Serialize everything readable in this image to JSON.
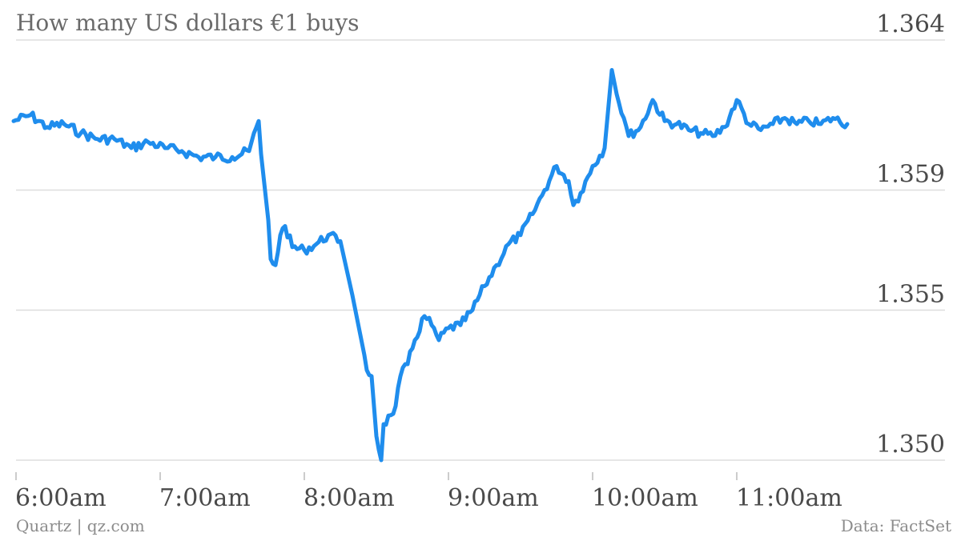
{
  "chart_data": {
    "type": "line",
    "title": "How many US dollars €1 buys",
    "xlabel": "",
    "ylabel": "",
    "ylim": [
      1.35,
      1.364
    ],
    "yticks": [
      "1.350",
      "1.355",
      "1.359",
      "1.364"
    ],
    "xticks": [
      "6:00am",
      "7:00am",
      "8:00am",
      "9:00am",
      "10:00am",
      "11:00am"
    ],
    "grid": true,
    "series": [
      {
        "color": "#1f8ded",
        "x": [
          "5:59am",
          "6:06am",
          "6:13am",
          "6:20am",
          "6:27am",
          "6:34am",
          "6:41am",
          "6:48am",
          "6:55am",
          "7:02am",
          "7:09am",
          "7:16am",
          "7:23am",
          "7:30am",
          "7:37am",
          "7:41am",
          "7:42am",
          "7:45am",
          "7:46am",
          "7:48am",
          "7:50am",
          "7:52am",
          "7:55am",
          "8:00am",
          "8:05am",
          "8:10am",
          "8:15am",
          "8:20am",
          "8:25am",
          "8:26am",
          "8:28am",
          "8:30am",
          "8:32am",
          "8:33am",
          "8:36am",
          "8:38am",
          "8:40am",
          "8:43am",
          "8:46am",
          "8:50am",
          "8:53am",
          "8:56am",
          "9:00am",
          "9:05am",
          "9:10am",
          "9:15am",
          "9:20am",
          "9:25am",
          "9:30am",
          "9:35am",
          "9:40am",
          "9:45am",
          "9:50am",
          "9:52am",
          "9:55am",
          "10:00am",
          "10:05am",
          "10:08am",
          "10:10am",
          "10:13am",
          "10:15am",
          "10:20am",
          "10:25am",
          "10:30am",
          "10:35am",
          "10:40am",
          "10:45am",
          "10:50am",
          "10:55am",
          "11:00am",
          "11:05am",
          "11:10am",
          "11:15am",
          "11:20am",
          "11:25am",
          "11:30am",
          "11:35am",
          "11:40am",
          "11:46am"
        ],
        "y": [
          1.3613,
          1.3615,
          1.3611,
          1.3612,
          1.3609,
          1.3607,
          1.3607,
          1.3604,
          1.3606,
          1.3604,
          1.3603,
          1.3601,
          1.3601,
          1.3601,
          1.3603,
          1.3613,
          1.3602,
          1.358,
          1.3567,
          1.3565,
          1.3575,
          1.3578,
          1.3571,
          1.357,
          1.3572,
          1.3575,
          1.3573,
          1.3555,
          1.3535,
          1.353,
          1.3528,
          1.3508,
          1.35,
          1.3512,
          1.3515,
          1.3518,
          1.3528,
          1.3532,
          1.354,
          1.3548,
          1.3545,
          1.354,
          1.3544,
          1.3545,
          1.355,
          1.3558,
          1.3565,
          1.3572,
          1.3575,
          1.3582,
          1.359,
          1.3598,
          1.3593,
          1.3585,
          1.3589,
          1.3598,
          1.3604,
          1.363,
          1.3622,
          1.3614,
          1.3608,
          1.3611,
          1.362,
          1.3613,
          1.3612,
          1.361,
          1.3609,
          1.3608,
          1.3611,
          1.362,
          1.3612,
          1.361,
          1.3612,
          1.3614,
          1.3612,
          1.3613,
          1.3612,
          1.3614,
          1.3612
        ]
      }
    ]
  },
  "footer": {
    "left": "Quartz | qz.com",
    "right": "Data: FactSet"
  },
  "colors": {
    "line": "#1f8ded",
    "grid": "#dddddd",
    "text": "#4a4a4a",
    "muted": "#8c8c8c"
  }
}
